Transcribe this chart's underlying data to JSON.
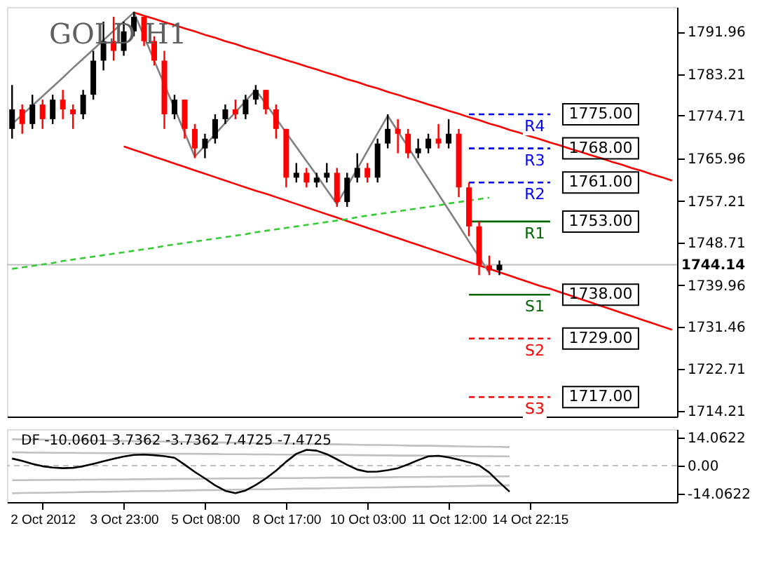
{
  "chart_data": [
    {
      "type": "candlestick",
      "title": "GOLD H1",
      "tick_labels": "y",
      "grid": false,
      "categories": [
        null,
        null,
        null,
        null,
        null,
        null,
        null,
        null,
        null,
        null,
        null,
        null,
        null,
        null,
        null,
        null,
        null,
        null,
        null,
        null,
        null,
        null,
        null,
        null,
        null,
        null,
        null,
        null,
        null,
        null,
        null,
        null,
        null,
        null,
        null,
        null,
        null,
        null,
        null,
        null,
        null,
        null,
        null,
        null,
        null,
        null,
        null,
        null,
        null,
        null,
        null,
        null,
        null,
        null,
        null,
        null,
        null,
        null,
        null,
        null,
        null,
        null,
        null,
        null,
        null,
        null
      ],
      "ohlc": [
        [
          1772,
          1781,
          1770,
          1776
        ],
        [
          1776,
          1777,
          1771,
          1773
        ],
        [
          1773,
          1779,
          1772,
          1777
        ],
        [
          1777,
          1778,
          1772,
          1774
        ],
        [
          1774,
          1779,
          1773,
          1778
        ],
        [
          1778,
          1780,
          1774,
          1776
        ],
        [
          1776,
          1777,
          1772,
          1775
        ],
        [
          1775,
          1780,
          1774,
          1779
        ],
        [
          1779,
          1788,
          1778,
          1786
        ],
        [
          1786,
          1794,
          1784,
          1790
        ],
        [
          1790,
          1795,
          1786,
          1788
        ],
        [
          1788,
          1794,
          1787,
          1792
        ],
        [
          1792,
          1796,
          1791,
          1795
        ],
        [
          1795,
          1795,
          1789,
          1790
        ],
        [
          1790,
          1791,
          1785,
          1786
        ],
        [
          1786,
          1788,
          1772,
          1775
        ],
        [
          1775,
          1779,
          1774,
          1778
        ],
        [
          1778,
          1778,
          1770,
          1772
        ],
        [
          1772,
          1773,
          1766,
          1768
        ],
        [
          1768,
          1771,
          1766,
          1770
        ],
        [
          1770,
          1775,
          1769,
          1774
        ],
        [
          1774,
          1777,
          1773,
          1776
        ],
        [
          1776,
          1778,
          1774,
          1775
        ],
        [
          1775,
          1779,
          1774,
          1778
        ],
        [
          1778,
          1781,
          1777,
          1780
        ],
        [
          1780,
          1780,
          1775,
          1776
        ],
        [
          1776,
          1777,
          1770,
          1772
        ],
        [
          1772,
          1772,
          1760,
          1762
        ],
        [
          1762,
          1765,
          1761,
          1763
        ],
        [
          1763,
          1764,
          1760,
          1761
        ],
        [
          1761,
          1763,
          1760,
          1762
        ],
        [
          1762,
          1765,
          1761,
          1763
        ],
        [
          1763,
          1764,
          1756,
          1757
        ],
        [
          1757,
          1763,
          1756,
          1762
        ],
        [
          1762,
          1767,
          1761,
          1764
        ],
        [
          1764,
          1765,
          1761,
          1762
        ],
        [
          1762,
          1770,
          1761,
          1769
        ],
        [
          1769,
          1775,
          1768,
          1772
        ],
        [
          1772,
          1774,
          1767,
          1771
        ],
        [
          1771,
          1772,
          1766,
          1767
        ],
        [
          1767,
          1770,
          1766,
          1768
        ],
        [
          1768,
          1771,
          1767,
          1770
        ],
        [
          1770,
          1773,
          1768,
          1769
        ],
        [
          1769,
          1774,
          1768,
          1771
        ],
        [
          1771,
          1772,
          1758,
          1760
        ],
        [
          1760,
          1761,
          1750,
          1752
        ],
        [
          1752,
          1753,
          1742,
          1744
        ],
        [
          1744,
          1746,
          1742,
          1743
        ],
        [
          1743,
          1745,
          1742,
          1744.14
        ],
        null,
        null,
        null,
        null,
        null,
        null,
        null,
        null,
        null,
        null,
        null,
        null,
        null,
        null,
        null,
        null,
        null
      ],
      "ylim": [
        1713,
        1797
      ],
      "yticks": [
        1714.21,
        1722.71,
        1731.46,
        1739.96,
        1748.71,
        1757.21,
        1765.96,
        1774.71,
        1783.21,
        1791.96
      ],
      "series": [
        {
          "type": "line",
          "color": "#ff0000",
          "line_style": "solid",
          "values": [
            null,
            null,
            null,
            null,
            null,
            null,
            null,
            null,
            null,
            null,
            null,
            null,
            1795.9,
            1795.2,
            1794.6,
            1793.9,
            1793.3,
            1792.6,
            1792.0,
            1791.3,
            1790.7,
            1790.0,
            1789.4,
            1788.7,
            1788.1,
            1787.4,
            1786.8,
            1786.1,
            1785.5,
            1784.8,
            1784.2,
            1783.5,
            1782.9,
            1782.2,
            1781.6,
            1780.9,
            1780.3,
            1779.6,
            1779.0,
            1778.3,
            1777.7,
            1777.0,
            1776.4,
            1775.7,
            1775.1,
            1774.4,
            1773.8,
            1773.1,
            1772.5,
            1771.8,
            1771.2,
            1770.5,
            1769.9,
            1769.2,
            1768.6,
            1767.9,
            1767.3,
            1766.6,
            1766.0,
            1765.3,
            1764.7,
            1764.0,
            1763.4,
            1762.7,
            1762.1,
            1761.4
          ]
        },
        {
          "type": "line",
          "color": "#ff0000",
          "line_style": "solid",
          "values": [
            null,
            null,
            null,
            null,
            null,
            null,
            null,
            null,
            null,
            null,
            null,
            1768.4,
            1767.7,
            1767.0,
            1766.3,
            1765.6,
            1764.9,
            1764.2,
            1763.5,
            1762.8,
            1762.1,
            1761.4,
            1760.7,
            1760.0,
            1759.3,
            1758.7,
            1758.0,
            1757.3,
            1756.6,
            1755.9,
            1755.2,
            1754.5,
            1753.8,
            1753.1,
            1752.4,
            1751.7,
            1751.0,
            1750.3,
            1749.6,
            1748.9,
            1748.2,
            1747.5,
            1746.8,
            1746.1,
            1745.4,
            1744.7,
            1744.0,
            1743.3,
            1742.6,
            1741.9,
            1741.2,
            1740.5,
            1739.8,
            1739.2,
            1738.5,
            1737.8,
            1737.1,
            1736.4,
            1735.7,
            1735.0,
            1734.3,
            1733.6,
            1732.9,
            1732.2,
            1731.5,
            1730.8
          ]
        },
        {
          "type": "line",
          "color": "#33cc33",
          "line_style": "dashed",
          "values": [
            1743.3,
            1743.6,
            1743.9,
            1744.2,
            1744.5,
            1744.9,
            1745.2,
            1745.5,
            1745.8,
            1746.1,
            1746.4,
            1746.7,
            1747.0,
            1747.3,
            1747.6,
            1748.0,
            1748.3,
            1748.6,
            1748.9,
            1749.2,
            1749.5,
            1749.8,
            1750.1,
            1750.4,
            1750.8,
            1751.1,
            1751.4,
            1751.7,
            1752.0,
            1752.3,
            1752.6,
            1752.9,
            1753.2,
            1753.5,
            1753.9,
            1754.2,
            1754.5,
            1754.8,
            1755.1,
            1755.4,
            1755.7,
            1756.0,
            1756.3,
            1756.7,
            1757.0,
            1757.3,
            1757.6,
            1757.9,
            null,
            null,
            null,
            null,
            null,
            null,
            null,
            null,
            null,
            null,
            null,
            null,
            null,
            null,
            null,
            null,
            null,
            null
          ]
        },
        {
          "type": "line",
          "color": "#808080",
          "line_style": "solid",
          "values": [
            1773.0,
            1774.9,
            1776.8,
            1778.7,
            1780.6,
            1782.5,
            1784.5,
            1786.4,
            1788.3,
            1790.2,
            1792.1,
            1794.0,
            1795.9,
            1791.0,
            1786.0,
            1781.1,
            1776.2,
            1771.2,
            1766.3,
            1768.6,
            1770.9,
            1773.2,
            1775.4,
            1777.7,
            1780.0,
            1777.1,
            1774.2,
            1771.2,
            1768.3,
            1765.4,
            1762.5,
            1759.5,
            1756.6,
            1760.2,
            1763.8,
            1767.5,
            1771.1,
            1774.7,
            1771.5,
            1768.3,
            1765.0,
            1761.8,
            1758.6,
            1755.4,
            1752.2,
            1748.9,
            1745.7,
            1742.5,
            null,
            null,
            null,
            null,
            null,
            null,
            null,
            null,
            null,
            null,
            null,
            null,
            null,
            null,
            null,
            null,
            null,
            null
          ]
        },
        {
          "type": "line",
          "name": "R4",
          "color": "#0000ff",
          "line_style": "dashed",
          "values": [
            null,
            null,
            null,
            null,
            null,
            null,
            null,
            null,
            null,
            null,
            null,
            null,
            null,
            null,
            null,
            null,
            null,
            null,
            null,
            null,
            null,
            null,
            null,
            null,
            null,
            null,
            null,
            null,
            null,
            null,
            null,
            null,
            null,
            null,
            null,
            null,
            null,
            null,
            null,
            null,
            null,
            null,
            null,
            null,
            null,
            1775,
            1775,
            1775,
            1775,
            1775,
            1775,
            1775,
            1775,
            1775,
            null,
            null,
            null,
            null,
            null,
            null,
            null,
            null,
            null,
            null,
            null,
            null
          ],
          "value_labels": [
            null,
            null,
            null,
            null,
            null,
            null,
            null,
            null,
            null,
            null,
            null,
            null,
            null,
            null,
            null,
            null,
            null,
            null,
            null,
            null,
            null,
            null,
            null,
            null,
            null,
            null,
            null,
            null,
            null,
            null,
            null,
            null,
            null,
            null,
            null,
            null,
            null,
            null,
            null,
            null,
            null,
            null,
            null,
            null,
            null,
            null,
            null,
            null,
            null,
            null,
            null,
            null,
            null,
            "1775.00",
            null,
            null,
            null,
            null,
            null,
            null,
            null,
            null,
            null,
            null,
            null,
            null
          ]
        },
        {
          "type": "line",
          "name": "R3",
          "color": "#0000ff",
          "line_style": "dashed",
          "values": [
            null,
            null,
            null,
            null,
            null,
            null,
            null,
            null,
            null,
            null,
            null,
            null,
            null,
            null,
            null,
            null,
            null,
            null,
            null,
            null,
            null,
            null,
            null,
            null,
            null,
            null,
            null,
            null,
            null,
            null,
            null,
            null,
            null,
            null,
            null,
            null,
            null,
            null,
            null,
            null,
            null,
            null,
            null,
            null,
            null,
            1768,
            1768,
            1768,
            1768,
            1768,
            1768,
            1768,
            1768,
            1768,
            null,
            null,
            null,
            null,
            null,
            null,
            null,
            null,
            null,
            null,
            null,
            null
          ],
          "value_labels": [
            null,
            null,
            null,
            null,
            null,
            null,
            null,
            null,
            null,
            null,
            null,
            null,
            null,
            null,
            null,
            null,
            null,
            null,
            null,
            null,
            null,
            null,
            null,
            null,
            null,
            null,
            null,
            null,
            null,
            null,
            null,
            null,
            null,
            null,
            null,
            null,
            null,
            null,
            null,
            null,
            null,
            null,
            null,
            null,
            null,
            null,
            null,
            null,
            null,
            null,
            null,
            null,
            null,
            "1768.00",
            null,
            null,
            null,
            null,
            null,
            null,
            null,
            null,
            null,
            null,
            null,
            null
          ]
        },
        {
          "type": "line",
          "name": "R2",
          "color": "#0000ff",
          "line_style": "dashed",
          "values": [
            null,
            null,
            null,
            null,
            null,
            null,
            null,
            null,
            null,
            null,
            null,
            null,
            null,
            null,
            null,
            null,
            null,
            null,
            null,
            null,
            null,
            null,
            null,
            null,
            null,
            null,
            null,
            null,
            null,
            null,
            null,
            null,
            null,
            null,
            null,
            null,
            null,
            null,
            null,
            null,
            null,
            null,
            null,
            null,
            null,
            1761,
            1761,
            1761,
            1761,
            1761,
            1761,
            1761,
            1761,
            1761,
            null,
            null,
            null,
            null,
            null,
            null,
            null,
            null,
            null,
            null,
            null,
            null
          ],
          "value_labels": [
            null,
            null,
            null,
            null,
            null,
            null,
            null,
            null,
            null,
            null,
            null,
            null,
            null,
            null,
            null,
            null,
            null,
            null,
            null,
            null,
            null,
            null,
            null,
            null,
            null,
            null,
            null,
            null,
            null,
            null,
            null,
            null,
            null,
            null,
            null,
            null,
            null,
            null,
            null,
            null,
            null,
            null,
            null,
            null,
            null,
            null,
            null,
            null,
            null,
            null,
            null,
            null,
            null,
            "1761.00",
            null,
            null,
            null,
            null,
            null,
            null,
            null,
            null,
            null,
            null,
            null,
            null
          ]
        },
        {
          "type": "line",
          "name": "R1",
          "color": "#006400",
          "line_style": "solid",
          "values": [
            null,
            null,
            null,
            null,
            null,
            null,
            null,
            null,
            null,
            null,
            null,
            null,
            null,
            null,
            null,
            null,
            null,
            null,
            null,
            null,
            null,
            null,
            null,
            null,
            null,
            null,
            null,
            null,
            null,
            null,
            null,
            null,
            null,
            null,
            null,
            null,
            null,
            null,
            null,
            null,
            null,
            null,
            null,
            null,
            null,
            1753,
            1753,
            1753,
            1753,
            1753,
            1753,
            1753,
            1753,
            1753,
            null,
            null,
            null,
            null,
            null,
            null,
            null,
            null,
            null,
            null,
            null,
            null
          ],
          "value_labels": [
            null,
            null,
            null,
            null,
            null,
            null,
            null,
            null,
            null,
            null,
            null,
            null,
            null,
            null,
            null,
            null,
            null,
            null,
            null,
            null,
            null,
            null,
            null,
            null,
            null,
            null,
            null,
            null,
            null,
            null,
            null,
            null,
            null,
            null,
            null,
            null,
            null,
            null,
            null,
            null,
            null,
            null,
            null,
            null,
            null,
            null,
            null,
            null,
            null,
            null,
            null,
            null,
            null,
            "1753.00",
            null,
            null,
            null,
            null,
            null,
            null,
            null,
            null,
            null,
            null,
            null,
            null
          ]
        },
        {
          "type": "line",
          "name": "S1",
          "color": "#006400",
          "line_style": "solid",
          "values": [
            null,
            null,
            null,
            null,
            null,
            null,
            null,
            null,
            null,
            null,
            null,
            null,
            null,
            null,
            null,
            null,
            null,
            null,
            null,
            null,
            null,
            null,
            null,
            null,
            null,
            null,
            null,
            null,
            null,
            null,
            null,
            null,
            null,
            null,
            null,
            null,
            null,
            null,
            null,
            null,
            null,
            null,
            null,
            null,
            null,
            1738,
            1738,
            1738,
            1738,
            1738,
            1738,
            1738,
            1738,
            1738,
            null,
            null,
            null,
            null,
            null,
            null,
            null,
            null,
            null,
            null,
            null,
            null
          ],
          "value_labels": [
            null,
            null,
            null,
            null,
            null,
            null,
            null,
            null,
            null,
            null,
            null,
            null,
            null,
            null,
            null,
            null,
            null,
            null,
            null,
            null,
            null,
            null,
            null,
            null,
            null,
            null,
            null,
            null,
            null,
            null,
            null,
            null,
            null,
            null,
            null,
            null,
            null,
            null,
            null,
            null,
            null,
            null,
            null,
            null,
            null,
            null,
            null,
            null,
            null,
            null,
            null,
            null,
            null,
            "1738.00",
            null,
            null,
            null,
            null,
            null,
            null,
            null,
            null,
            null,
            null,
            null,
            null
          ]
        },
        {
          "type": "line",
          "name": "S2",
          "color": "#ff0000",
          "line_style": "dashed",
          "values": [
            null,
            null,
            null,
            null,
            null,
            null,
            null,
            null,
            null,
            null,
            null,
            null,
            null,
            null,
            null,
            null,
            null,
            null,
            null,
            null,
            null,
            null,
            null,
            null,
            null,
            null,
            null,
            null,
            null,
            null,
            null,
            null,
            null,
            null,
            null,
            null,
            null,
            null,
            null,
            null,
            null,
            null,
            null,
            null,
            null,
            1729,
            1729,
            1729,
            1729,
            1729,
            1729,
            1729,
            1729,
            1729,
            null,
            null,
            null,
            null,
            null,
            null,
            null,
            null,
            null,
            null,
            null,
            null
          ],
          "value_labels": [
            null,
            null,
            null,
            null,
            null,
            null,
            null,
            null,
            null,
            null,
            null,
            null,
            null,
            null,
            null,
            null,
            null,
            null,
            null,
            null,
            null,
            null,
            null,
            null,
            null,
            null,
            null,
            null,
            null,
            null,
            null,
            null,
            null,
            null,
            null,
            null,
            null,
            null,
            null,
            null,
            null,
            null,
            null,
            null,
            null,
            null,
            null,
            null,
            null,
            null,
            null,
            null,
            null,
            "1729.00",
            null,
            null,
            null,
            null,
            null,
            null,
            null,
            null,
            null,
            null,
            null,
            null
          ]
        },
        {
          "type": "line",
          "name": "S3",
          "color": "#ff0000",
          "line_style": "dashed",
          "values": [
            null,
            null,
            null,
            null,
            null,
            null,
            null,
            null,
            null,
            null,
            null,
            null,
            null,
            null,
            null,
            null,
            null,
            null,
            null,
            null,
            null,
            null,
            null,
            null,
            null,
            null,
            null,
            null,
            null,
            null,
            null,
            null,
            null,
            null,
            null,
            null,
            null,
            null,
            null,
            null,
            null,
            null,
            null,
            null,
            null,
            1717,
            1717,
            1717,
            1717,
            1717,
            1717,
            1717,
            1717,
            1717,
            null,
            null,
            null,
            null,
            null,
            null,
            null,
            null,
            null,
            null,
            null,
            null
          ],
          "value_labels": [
            null,
            null,
            null,
            null,
            null,
            null,
            null,
            null,
            null,
            null,
            null,
            null,
            null,
            null,
            null,
            null,
            null,
            null,
            null,
            null,
            null,
            null,
            null,
            null,
            null,
            null,
            null,
            null,
            null,
            null,
            null,
            null,
            null,
            null,
            null,
            null,
            null,
            null,
            null,
            null,
            null,
            null,
            null,
            null,
            null,
            null,
            null,
            null,
            null,
            null,
            null,
            null,
            null,
            "1717.00",
            null,
            null,
            null,
            null,
            null,
            null,
            null,
            null,
            null,
            null,
            null,
            null
          ]
        }
      ],
      "ref_lines": [
        {
          "axis": "y",
          "value": 1744.14,
          "label": "1744.14",
          "color": "#c0c0c0",
          "line_style": "solid"
        }
      ]
    },
    {
      "type": "line",
      "grid": false,
      "categories": [
        null,
        null,
        null,
        "2 Oct 2012",
        null,
        null,
        null,
        null,
        null,
        null,
        null,
        "3 Oct 23:00",
        null,
        null,
        null,
        null,
        null,
        null,
        null,
        "5 Oct 08:00",
        null,
        null,
        null,
        null,
        null,
        null,
        null,
        "8 Oct 17:00",
        null,
        null,
        null,
        null,
        null,
        null,
        null,
        "10 Oct 03:00",
        null,
        null,
        null,
        null,
        null,
        null,
        null,
        "11 Oct 12:00",
        null,
        null,
        null,
        null,
        null,
        null,
        null,
        "14 Oct 22:15",
        null,
        null,
        null,
        null,
        null,
        null,
        null,
        null,
        null,
        null,
        null,
        null,
        null,
        null
      ],
      "ylim": [
        -18.5,
        18.5
      ],
      "yticks": [
        {
          "value": -14.0622,
          "label": "-14.0622"
        },
        {
          "value": 0,
          "label": "0.00"
        },
        {
          "value": 14.0622,
          "label": "14.0622"
        }
      ],
      "series": [
        {
          "type": "line",
          "color": "#c0c0c0",
          "line_style": "solid",
          "values": [
            13.4,
            13.3,
            13.2,
            13.2,
            13.1,
            13.0,
            12.9,
            12.8,
            12.7,
            12.7,
            12.6,
            12.5,
            12.4,
            12.3,
            12.3,
            12.2,
            12.1,
            12.0,
            11.9,
            11.9,
            11.8,
            11.7,
            11.6,
            11.5,
            11.4,
            11.4,
            11.3,
            11.2,
            11.1,
            11.0,
            11.0,
            10.9,
            10.8,
            10.7,
            10.6,
            10.5,
            10.5,
            10.4,
            10.3,
            10.2,
            10.1,
            10.1,
            10.0,
            9.9,
            9.8,
            9.7,
            9.6,
            9.6,
            9.5,
            9.4,
            null,
            null,
            null,
            null,
            null,
            null,
            null,
            null,
            null,
            null,
            null,
            null,
            null,
            null,
            null,
            null
          ]
        },
        {
          "type": "line",
          "color": "#c0c0c0",
          "line_style": "solid",
          "values": [
            6.7,
            6.7,
            6.6,
            6.6,
            6.5,
            6.5,
            6.5,
            6.4,
            6.4,
            6.3,
            6.3,
            6.3,
            6.2,
            6.2,
            6.1,
            6.1,
            6.0,
            6.0,
            6.0,
            5.9,
            5.9,
            5.8,
            5.8,
            5.8,
            5.7,
            5.7,
            5.6,
            5.6,
            5.6,
            5.5,
            5.5,
            5.4,
            5.4,
            5.4,
            5.3,
            5.3,
            5.2,
            5.2,
            5.1,
            5.1,
            5.1,
            5.0,
            5.0,
            4.9,
            4.9,
            4.9,
            4.8,
            4.8,
            4.7,
            4.7,
            null,
            null,
            null,
            null,
            null,
            null,
            null,
            null,
            null,
            null,
            null,
            null,
            null,
            null,
            null,
            null
          ]
        },
        {
          "type": "line",
          "color": "#c0c0c0",
          "line_style": "solid",
          "values": [
            -7.4,
            -7.4,
            -7.3,
            -7.3,
            -7.2,
            -7.2,
            -7.2,
            -7.1,
            -7.1,
            -7.0,
            -7.0,
            -7.0,
            -6.9,
            -6.9,
            -6.8,
            -6.8,
            -6.7,
            -6.7,
            -6.7,
            -6.6,
            -6.6,
            -6.5,
            -6.5,
            -6.5,
            -6.4,
            -6.4,
            -6.3,
            -6.3,
            -6.3,
            -6.2,
            -6.2,
            -6.1,
            -6.1,
            -6.1,
            -6.0,
            -6.0,
            -5.9,
            -5.9,
            -5.8,
            -5.8,
            -5.8,
            -5.7,
            -5.7,
            -5.6,
            -5.6,
            -5.6,
            -5.5,
            -5.5,
            -5.4,
            -5.4,
            null,
            null,
            null,
            null,
            null,
            null,
            null,
            null,
            null,
            null,
            null,
            null,
            null,
            null,
            null,
            null
          ]
        },
        {
          "type": "line",
          "color": "#c0c0c0",
          "line_style": "solid",
          "values": [
            -14.0,
            -13.9,
            -13.8,
            -13.8,
            -13.7,
            -13.6,
            -13.5,
            -13.4,
            -13.3,
            -13.3,
            -13.2,
            -13.1,
            -13.0,
            -12.9,
            -12.9,
            -12.8,
            -12.7,
            -12.6,
            -12.5,
            -12.4,
            -12.4,
            -12.3,
            -12.2,
            -12.1,
            -12.0,
            -12.0,
            -11.9,
            -11.8,
            -11.7,
            -11.6,
            -11.6,
            -11.5,
            -11.4,
            -11.3,
            -11.2,
            -11.1,
            -11.1,
            -11.0,
            -10.9,
            -10.8,
            -10.7,
            -10.7,
            -10.6,
            -10.5,
            -10.4,
            -10.3,
            -10.2,
            -10.2,
            -10.1,
            -10.0,
            null,
            null,
            null,
            null,
            null,
            null,
            null,
            null,
            null,
            null,
            null,
            null,
            null,
            null,
            null,
            null
          ]
        },
        {
          "type": "line",
          "color": "#000000",
          "line_style": "solid",
          "values": [
            3.6,
            2.4,
            0.9,
            -0.3,
            -1.0,
            -1.3,
            -1.1,
            -0.3,
            0.9,
            2.2,
            3.5,
            4.6,
            5.4,
            5.6,
            5.3,
            4.8,
            4.0,
            0.5,
            -3.2,
            -6.5,
            -10.0,
            -12.8,
            -14.0,
            -12.6,
            -9.8,
            -6.5,
            -2.6,
            2.0,
            6.0,
            8.0,
            7.6,
            5.8,
            3.2,
            0.4,
            -2.0,
            -3.1,
            -3.0,
            -2.3,
            -1.3,
            0.6,
            2.8,
            4.7,
            5.0,
            4.2,
            3.0,
            1.7,
            0.2,
            -3.5,
            -8.5,
            -13.2,
            null,
            null,
            null,
            null,
            null,
            null,
            null,
            null,
            null,
            null,
            null,
            null,
            null,
            null,
            null,
            null
          ]
        }
      ],
      "ref_lines": [
        {
          "axis": "y",
          "value": 0,
          "color": "#c0c0c0",
          "line_style": "dashed"
        }
      ],
      "annotations": [
        "DF -10.0601 3.7362 -3.7362 7.4725 -7.4725"
      ]
    }
  ]
}
